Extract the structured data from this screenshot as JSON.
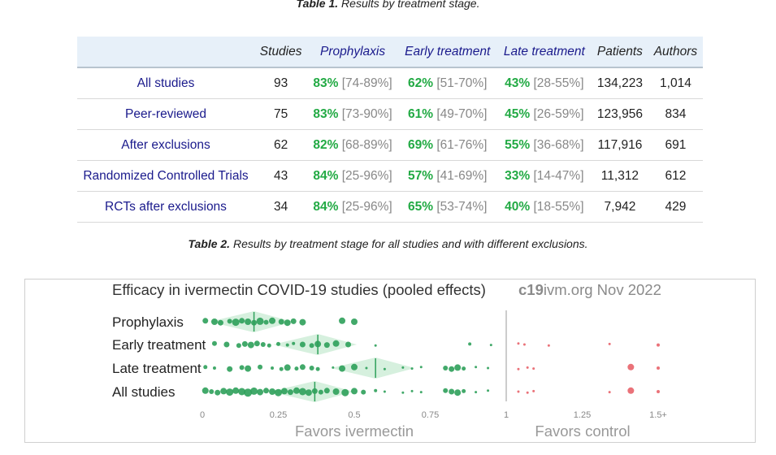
{
  "captions": {
    "table1_label": "Table 1.",
    "table1_text": "Results by treatment stage.",
    "table2_label": "Table 2.",
    "table2_text": "Results by treatment stage for all studies and with different exclusions."
  },
  "table": {
    "headers": [
      "",
      "Studies",
      "Prophylaxis",
      "Early treatment",
      "Late treatment",
      "Patients",
      "Authors"
    ],
    "rows": [
      {
        "name": "All studies",
        "studies": "93",
        "p": "83%",
        "p_ci": "[74-89%]",
        "e": "62%",
        "e_ci": "[51-70%]",
        "l": "43%",
        "l_ci": "[28-55%]",
        "patients": "134,223",
        "authors": "1,014"
      },
      {
        "name": "Peer-reviewed",
        "studies": "75",
        "p": "83%",
        "p_ci": "[73-90%]",
        "e": "61%",
        "e_ci": "[49-70%]",
        "l": "45%",
        "l_ci": "[26-59%]",
        "patients": "123,956",
        "authors": "834"
      },
      {
        "name": "After exclusions",
        "studies": "62",
        "p": "82%",
        "p_ci": "[68-89%]",
        "e": "69%",
        "e_ci": "[61-76%]",
        "l": "55%",
        "l_ci": "[36-68%]",
        "patients": "117,916",
        "authors": "691"
      },
      {
        "name": "Randomized Controlled Trials",
        "studies": "43",
        "p": "84%",
        "p_ci": "[25-96%]",
        "e": "57%",
        "e_ci": "[41-69%]",
        "l": "33%",
        "l_ci": "[14-47%]",
        "patients": "11,312",
        "authors": "612"
      },
      {
        "name": "RCTs after exclusions",
        "studies": "34",
        "p": "84%",
        "p_ci": "[25-96%]",
        "e": "65%",
        "e_ci": "[53-74%]",
        "l": "40%",
        "l_ci": "[18-55%]",
        "patients": "7,942",
        "authors": "429"
      }
    ]
  },
  "chart_data": {
    "type": "scatter",
    "title": "Efficacy in ivermectin COVID-19 studies (pooled effects)",
    "brand_bold": "c19",
    "brand_rest": "ivm.org Nov 2022",
    "xlim": [
      0,
      1.5
    ],
    "xticks": [
      {
        "value": 0,
        "label": "0"
      },
      {
        "value": 0.25,
        "label": "0.25"
      },
      {
        "value": 0.5,
        "label": "0.5"
      },
      {
        "value": 0.75,
        "label": "0.75"
      },
      {
        "value": 1,
        "label": "1"
      },
      {
        "value": 1.25,
        "label": "1.25"
      },
      {
        "value": 1.5,
        "label": "1.5+"
      }
    ],
    "favors_left": "Favors ivermectin",
    "favors_right": "Favors control",
    "colors": {
      "favor": "#2ea05a",
      "against": "#e8636a",
      "violin": "#d6f0de",
      "ref_line": "#999999"
    },
    "categories": [
      "Prophylaxis",
      "Early treatment",
      "Late treatment",
      "All studies"
    ],
    "pooled": [
      0.17,
      0.38,
      0.57,
      0.37
    ],
    "series": [
      {
        "values": [
          0.01,
          0.04,
          0.06,
          0.09,
          0.11,
          0.13,
          0.15,
          0.17,
          0.19,
          0.21,
          0.23,
          0.26,
          0.28,
          0.3,
          0.33,
          0.46,
          0.5
        ],
        "sizes": [
          7,
          8,
          7,
          6,
          9,
          7,
          8,
          7,
          9,
          6,
          8,
          7,
          8,
          7,
          8,
          8,
          8
        ]
      },
      {
        "values": [
          0.04,
          0.08,
          0.12,
          0.14,
          0.16,
          0.18,
          0.2,
          0.22,
          0.25,
          0.28,
          0.3,
          0.33,
          0.36,
          0.38,
          0.41,
          0.44,
          0.48,
          0.57,
          0.88,
          0.95,
          1.04,
          1.06,
          1.14,
          1.34,
          1.5
        ],
        "sizes": [
          6,
          7,
          6,
          7,
          8,
          7,
          6,
          5,
          5,
          4,
          4,
          7,
          6,
          8,
          7,
          8,
          7,
          3,
          4,
          3,
          3,
          3,
          3,
          3,
          4
        ]
      },
      {
        "values": [
          0.01,
          0.04,
          0.09,
          0.13,
          0.15,
          0.19,
          0.23,
          0.26,
          0.28,
          0.31,
          0.33,
          0.36,
          0.38,
          0.43,
          0.46,
          0.5,
          0.54,
          0.6,
          0.66,
          0.69,
          0.72,
          0.8,
          0.82,
          0.84,
          0.86,
          0.9,
          0.94,
          1.04,
          1.07,
          1.09,
          1.41,
          1.5
        ],
        "sizes": [
          5,
          4,
          7,
          6,
          8,
          6,
          4,
          5,
          8,
          5,
          7,
          6,
          5,
          3,
          8,
          8,
          3,
          3,
          3,
          3,
          3,
          6,
          7,
          8,
          5,
          3,
          3,
          3,
          3,
          3,
          8,
          4
        ]
      },
      {
        "values": [
          0.01,
          0.03,
          0.05,
          0.07,
          0.09,
          0.11,
          0.13,
          0.15,
          0.17,
          0.19,
          0.21,
          0.23,
          0.25,
          0.27,
          0.29,
          0.31,
          0.33,
          0.35,
          0.37,
          0.39,
          0.41,
          0.44,
          0.47,
          0.5,
          0.53,
          0.57,
          0.6,
          0.66,
          0.69,
          0.72,
          0.8,
          0.82,
          0.84,
          0.86,
          0.9,
          0.94,
          1.04,
          1.07,
          1.09,
          1.34,
          1.41,
          1.5
        ],
        "sizes": [
          8,
          6,
          7,
          8,
          9,
          8,
          9,
          10,
          9,
          8,
          7,
          8,
          9,
          8,
          7,
          8,
          9,
          8,
          7,
          6,
          7,
          8,
          9,
          8,
          6,
          4,
          3,
          3,
          3,
          3,
          6,
          7,
          8,
          5,
          3,
          3,
          3,
          3,
          3,
          3,
          8,
          4
        ]
      }
    ]
  }
}
